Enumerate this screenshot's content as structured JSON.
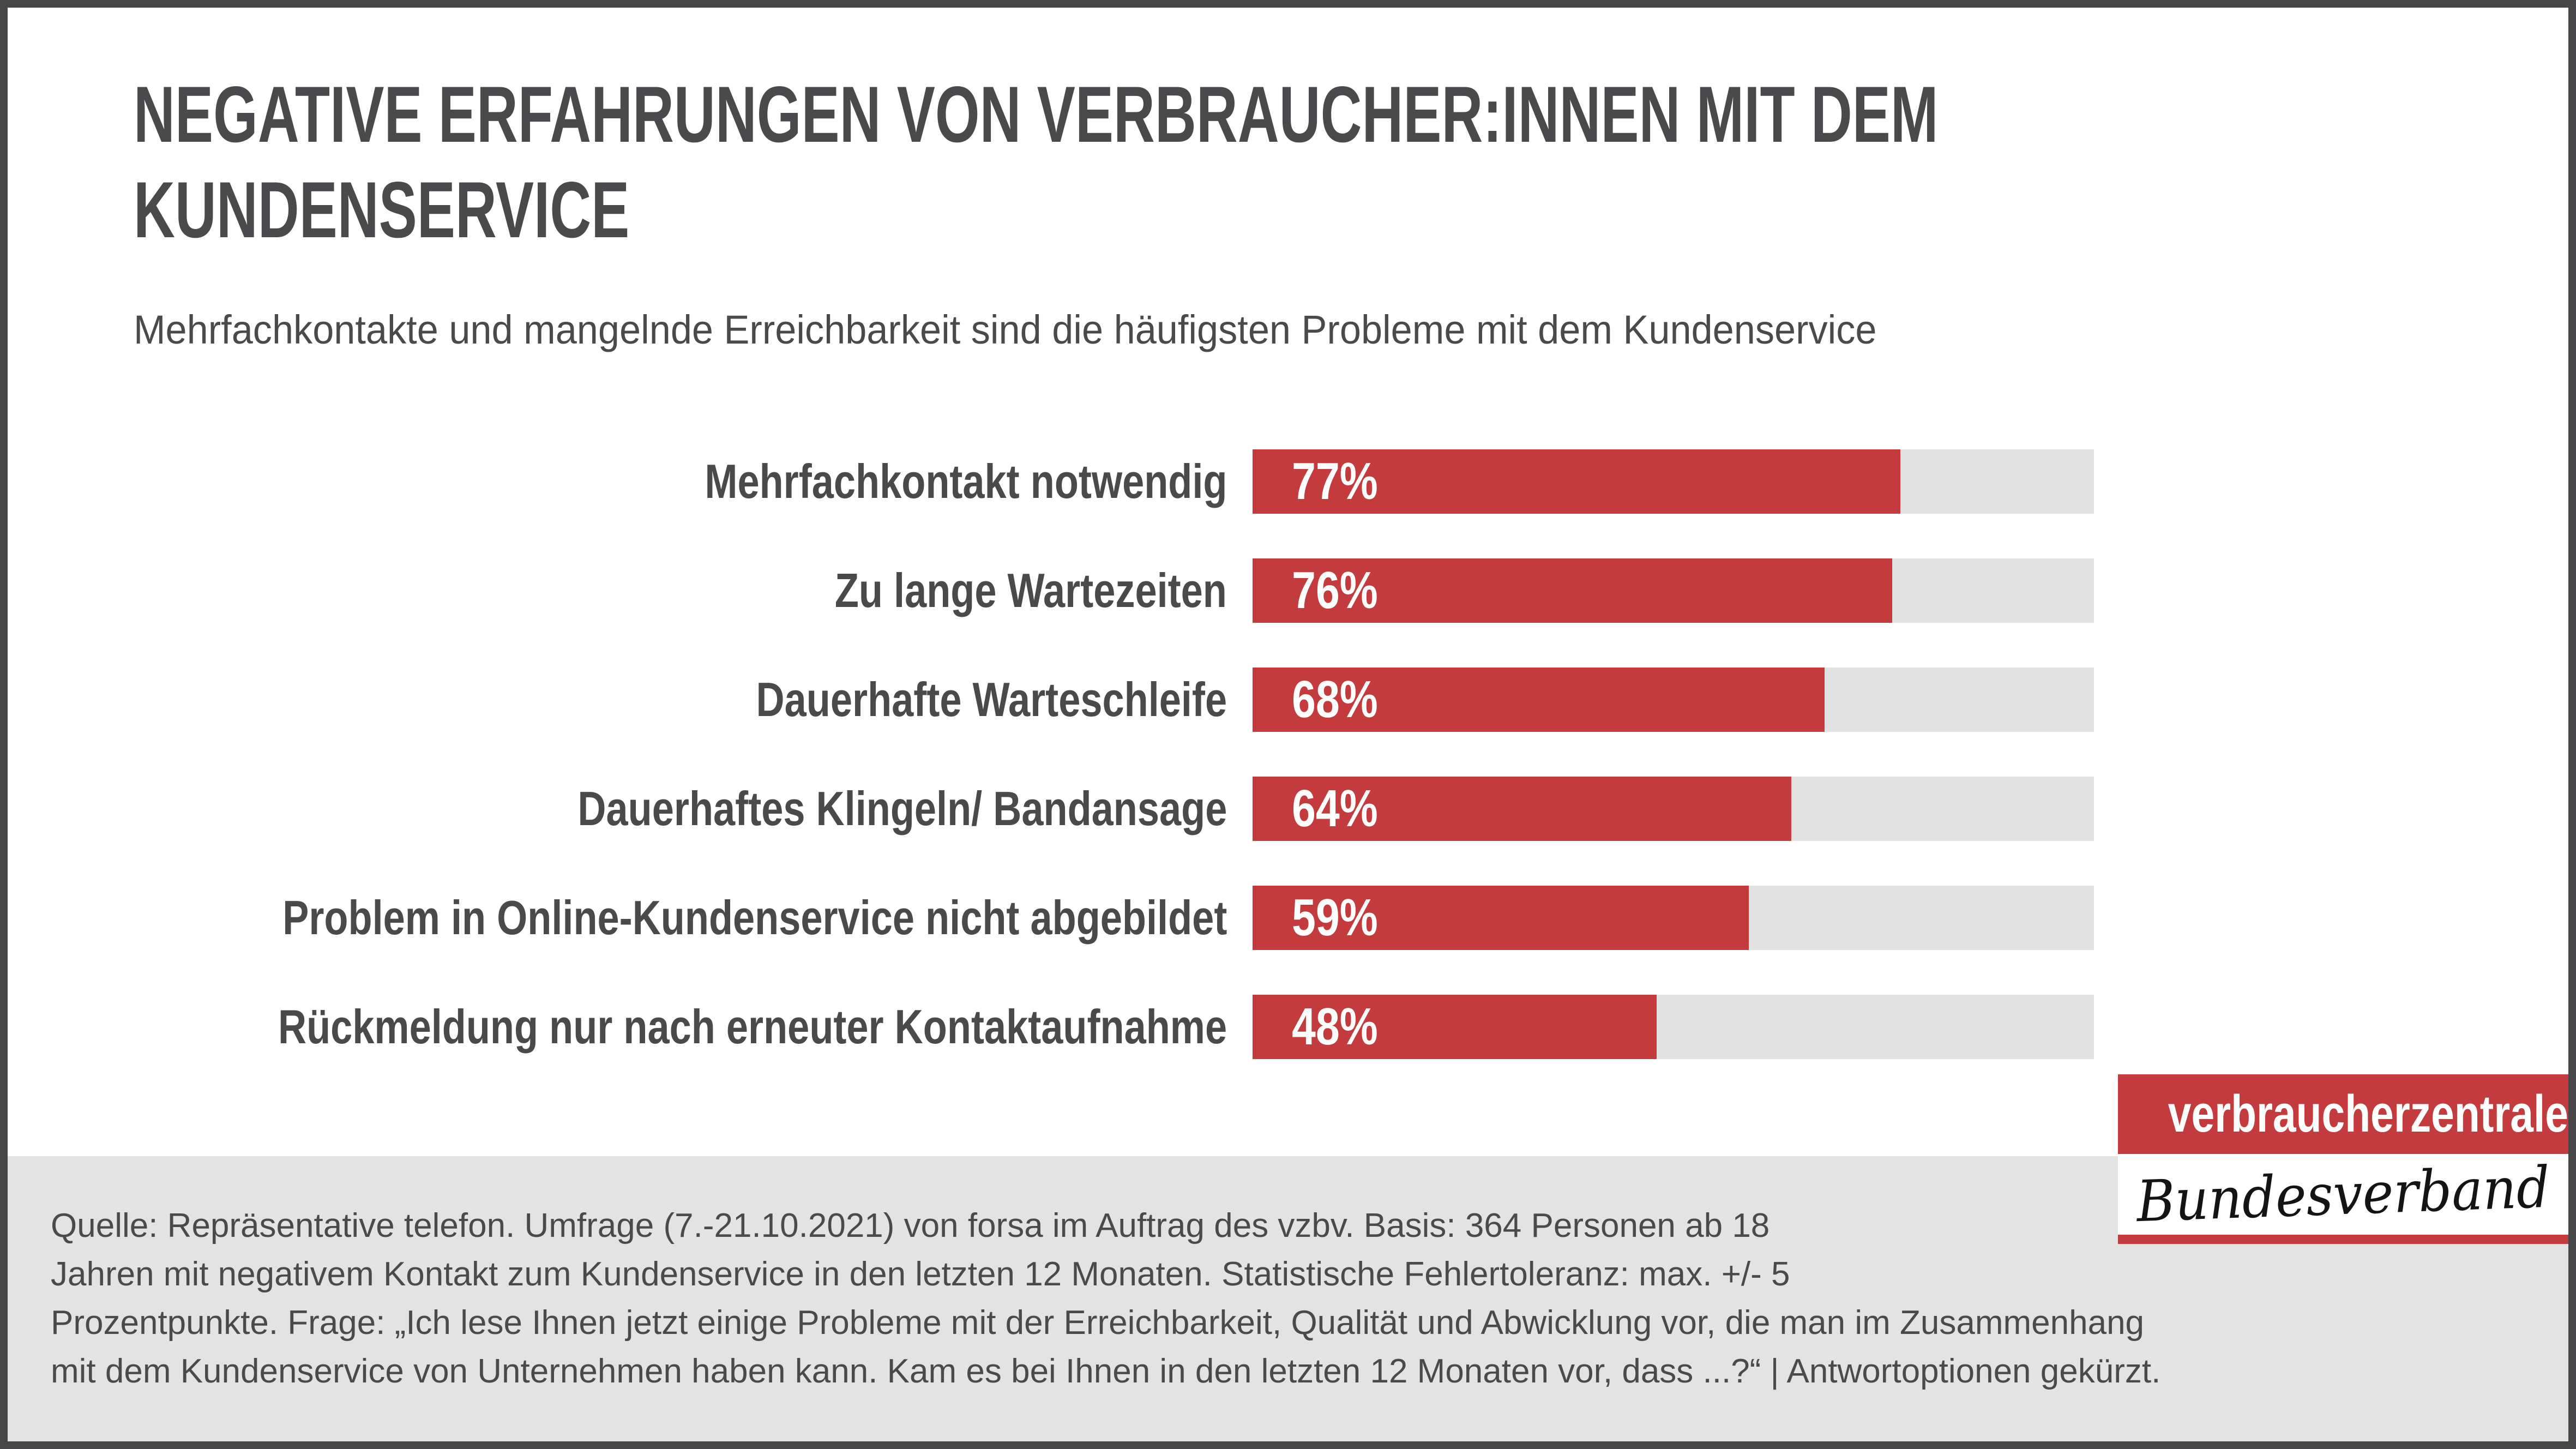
{
  "header": {
    "title_lines": [
      "NEGATIVE ERFAHRUNGEN VON VERBRAUCHER:INNEN MIT DEM",
      "KUNDENSERVICE"
    ],
    "subtitle": "Mehrfachkontakte und mangelnde Erreichbarkeit sind die häufigsten Probleme mit dem Kundenservice"
  },
  "chart_data": {
    "type": "bar",
    "orientation": "horizontal",
    "title": "Negative Erfahrungen von Verbraucher:innen mit dem Kundenservice",
    "subtitle": "Mehrfachkontakte und mangelnde Erreichbarkeit sind die häufigsten Probleme mit dem Kundenservice",
    "categories": [
      "Mehrfachkontakt notwendig",
      "Zu lange Wartezeiten",
      "Dauerhafte Warteschleife",
      "Dauerhaftes Klingeln/ Bandansage",
      "Problem in Online-Kundenservice nicht abgebildet",
      "Rückmeldung nur nach erneuter Kontaktaufnahme"
    ],
    "values": [
      77,
      76,
      68,
      64,
      59,
      48
    ],
    "value_labels": [
      "77%",
      "76%",
      "68%",
      "64%",
      "59%",
      "48%"
    ],
    "unit": "%",
    "xlim": [
      0,
      100
    ],
    "grid": false,
    "legend": false,
    "bar_color": "#c43b3e",
    "track_color": "#e2e2e2",
    "value_label_color": "#ffffff"
  },
  "footer": {
    "lines": [
      "Quelle: Repräsentative telefon. Umfrage (7.-21.10.2021) von forsa im Auftrag des vzbv. Basis: 364 Personen ab 18",
      "Jahren mit negativem Kontakt zum Kundenservice in den letzten 12 Monaten. Statistische Fehlertoleranz: max. +/- 5",
      "Prozentpunkte. Frage: „Ich lese Ihnen jetzt einige Probleme mit der Erreichbarkeit, Qualität und Abwicklung vor, die man im Zusammenhang",
      "mit dem Kundenservice von Unternehmen haben kann. Kam es bei Ihnen in den letzten 12 Monaten vor, dass ...?“ | Antwortoptionen gekürzt."
    ]
  },
  "logo": {
    "line1": "verbraucherzentrale",
    "line2": "Bundesverband"
  },
  "colors": {
    "accent_red": "#c43b3e",
    "track_gray": "#e2e2e2",
    "band_gray": "#e3e3e4",
    "text_dark": "#4a4a4d",
    "frame_border": "#47474a"
  }
}
